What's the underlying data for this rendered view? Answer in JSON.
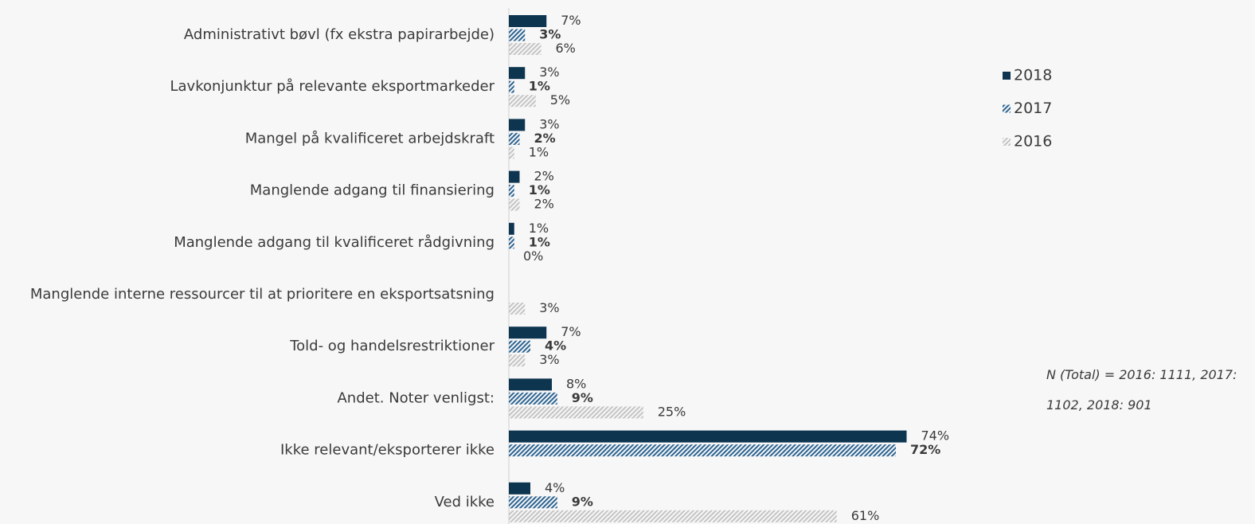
{
  "chart_data": {
    "type": "bar",
    "orientation": "horizontal",
    "categories": [
      "Administrativt bøvl (fx ekstra papirarbejde)",
      "Lavkonjunktur på relevante eksportmarkeder",
      "Mangel på kvalificeret arbejdskraft",
      "Manglende adgang til finansiering",
      "Manglende adgang til kvalificeret rådgivning",
      "Manglende interne ressourcer til at prioritere en eksportsatsning",
      "Told- og handelsrestriktioner",
      "Andet. Noter venligst:",
      "Ikke relevant/eksporterer ikke",
      "Ved ikke"
    ],
    "series": [
      {
        "name": "2018",
        "color": "#0d3550",
        "pattern": "solid",
        "bold_labels": false,
        "values": [
          7,
          3,
          3,
          2,
          1,
          null,
          7,
          8,
          74,
          4
        ],
        "value_labels": [
          "7%",
          "3%",
          "3%",
          "2%",
          "1%",
          null,
          "7%",
          "8%",
          "74%",
          "4%"
        ]
      },
      {
        "name": "2017",
        "color": "#2b6391",
        "pattern": "hatch",
        "bold_labels": true,
        "values": [
          3,
          1,
          2,
          1,
          1,
          null,
          4,
          9,
          72,
          9
        ],
        "value_labels": [
          "3%",
          "1%",
          "2%",
          "1%",
          "1%",
          null,
          "4%",
          "9%",
          "72%",
          "9%"
        ]
      },
      {
        "name": "2016",
        "color": "#c4c4c4",
        "pattern": "hatch",
        "bold_labels": false,
        "values": [
          6,
          5,
          1,
          2,
          0,
          3,
          3,
          25,
          null,
          61
        ],
        "value_labels": [
          "6%",
          "5%",
          "1%",
          "2%",
          "0%",
          "3%",
          "3%",
          "25%",
          null,
          "61%"
        ]
      }
    ],
    "xlim": [
      0,
      100
    ],
    "legend": "right",
    "annotation": "N (Total) = 2016: 1111, 2017: 1102, 2018: 901"
  }
}
